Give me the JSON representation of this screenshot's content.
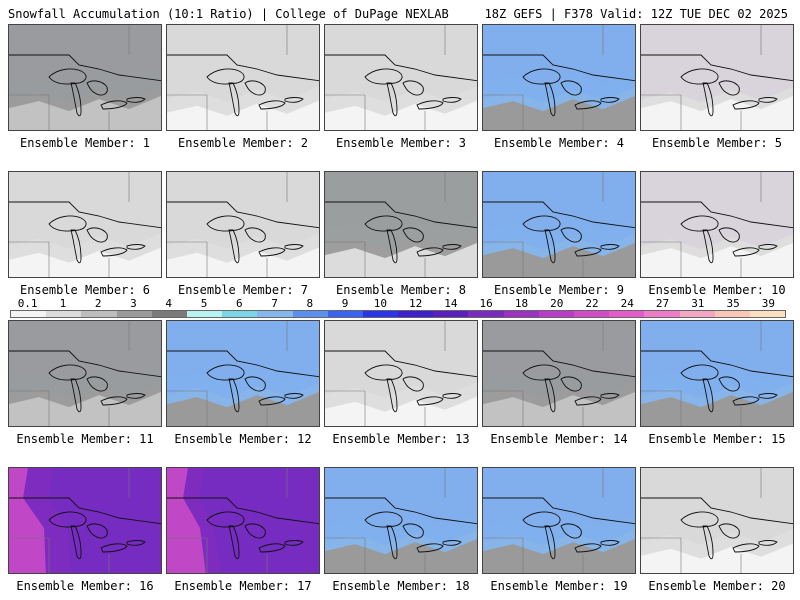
{
  "header": {
    "left": "Snowfall Accumulation (10:1 Ratio) | College of DuPage NEXLAB",
    "right": "18Z GEFS | F378 Valid: 12Z TUE DEC 02 2025"
  },
  "colorbar": {
    "ticks": [
      "0.1",
      "1",
      "2",
      "3",
      "4",
      "5",
      "6",
      "7",
      "8",
      "9",
      "10",
      "12",
      "14",
      "16",
      "18",
      "20",
      "22",
      "24",
      "27",
      "31",
      "35",
      "39"
    ],
    "colors": [
      "#f4f4f4",
      "#dcdcdc",
      "#bdbdbd",
      "#9a9a9a",
      "#7a7a7a",
      "#b8f2f2",
      "#7ad8e6",
      "#86b6ee",
      "#5d8ff0",
      "#3b62f0",
      "#2a34e8",
      "#3f20cc",
      "#5a1fbf",
      "#7a2bbf",
      "#9a33c4",
      "#b93dc8",
      "#d24bcb",
      "#e45bc9",
      "#f07cc8",
      "#f6a6c4",
      "#f8c7b8",
      "#fbe0c4"
    ]
  },
  "panels": [
    {
      "label": "Ensemble Member: 1",
      "pattern": "lakes-heavy"
    },
    {
      "label": "Ensemble Member: 2",
      "pattern": "north"
    },
    {
      "label": "Ensemble Member: 3",
      "pattern": "north"
    },
    {
      "label": "Ensemble Member: 4",
      "pattern": "widespread"
    },
    {
      "label": "Ensemble Member: 5",
      "pattern": "light"
    },
    {
      "label": "Ensemble Member: 6",
      "pattern": "north"
    },
    {
      "label": "Ensemble Member: 7",
      "pattern": "north"
    },
    {
      "label": "Ensemble Member: 8",
      "pattern": "north-band"
    },
    {
      "label": "Ensemble Member: 9",
      "pattern": "widespread"
    },
    {
      "label": "Ensemble Member: 10",
      "pattern": "light"
    },
    {
      "label": "Ensemble Member: 11",
      "pattern": "lakes-heavy"
    },
    {
      "label": "Ensemble Member: 12",
      "pattern": "widespread"
    },
    {
      "label": "Ensemble Member: 13",
      "pattern": "north"
    },
    {
      "label": "Ensemble Member: 14",
      "pattern": "lakes-heavy"
    },
    {
      "label": "Ensemble Member: 15",
      "pattern": "widespread"
    },
    {
      "label": "Ensemble Member: 16",
      "pattern": "east"
    },
    {
      "label": "Ensemble Member: 17",
      "pattern": "east"
    },
    {
      "label": "Ensemble Member: 18",
      "pattern": "widespread"
    },
    {
      "label": "Ensemble Member: 19",
      "pattern": "widespread"
    },
    {
      "label": "Ensemble Member: 20",
      "pattern": "north"
    }
  ]
}
